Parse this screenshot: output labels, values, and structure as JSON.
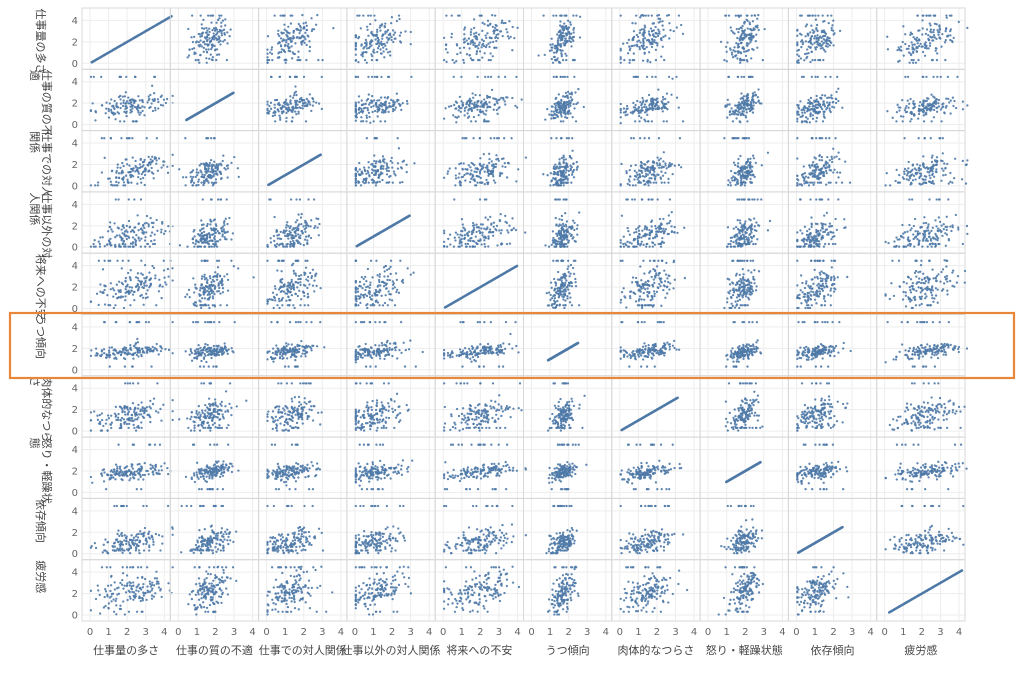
{
  "chart_data": {
    "type": "scatter",
    "title": "",
    "chart_kind": "scatter-matrix",
    "variables": [
      "仕事量の多さ",
      "仕事の質の不適",
      "仕事での対人関係",
      "仕事以外の対人関係",
      "将来への不安",
      "うつ傾向",
      "肉体的なつらさ",
      "怒り・軽躁状態",
      "依存傾向",
      "疲労感"
    ],
    "row_labels": [
      "仕事量の多さ",
      "仕事の質の不適",
      "仕事での対人関係",
      "仕事以外の対人関係",
      "将来への不安",
      "うつ傾向",
      "肉体的なつらさ",
      "怒り・軽躁状態",
      "依存傾向",
      "疲労感"
    ],
    "x_ticks": [
      "0",
      "1",
      "2",
      "3",
      "4"
    ],
    "y_ticks": [
      "0",
      "2",
      "4"
    ],
    "xlim": [
      0,
      4
    ],
    "ylim": [
      0,
      4.6
    ],
    "grid": true,
    "diagonal": "identity line (each variable plotted against itself)",
    "point_color": "#4e79a7",
    "highlight": {
      "row": "うつ傾向",
      "color": "#e8873a"
    },
    "variable_summary": [
      {
        "name": "仕事量の多さ",
        "center": 2.2,
        "spread": 0.95
      },
      {
        "name": "仕事の質の不適",
        "center": 1.7,
        "spread": 0.55
      },
      {
        "name": "仕事での対人関係",
        "center": 1.3,
        "spread": 0.7
      },
      {
        "name": "仕事以外の対人関係",
        "center": 1.1,
        "spread": 0.8
      },
      {
        "name": "将来への不安",
        "center": 1.9,
        "spread": 0.9
      },
      {
        "name": "うつ傾向",
        "center": 1.7,
        "spread": 0.35
      },
      {
        "name": "肉体的なつらさ",
        "center": 1.5,
        "spread": 0.7
      },
      {
        "name": "怒り・軽躁状態",
        "center": 1.9,
        "spread": 0.4
      },
      {
        "name": "依存傾向",
        "center": 1.1,
        "spread": 0.6
      },
      {
        "name": "疲労感",
        "center": 2.2,
        "spread": 0.85
      }
    ]
  },
  "colors": {
    "points": "#4e79a7",
    "highlight_box": "#e8873a",
    "grid": "#ededed",
    "pane_border": "#d8d8d8"
  }
}
